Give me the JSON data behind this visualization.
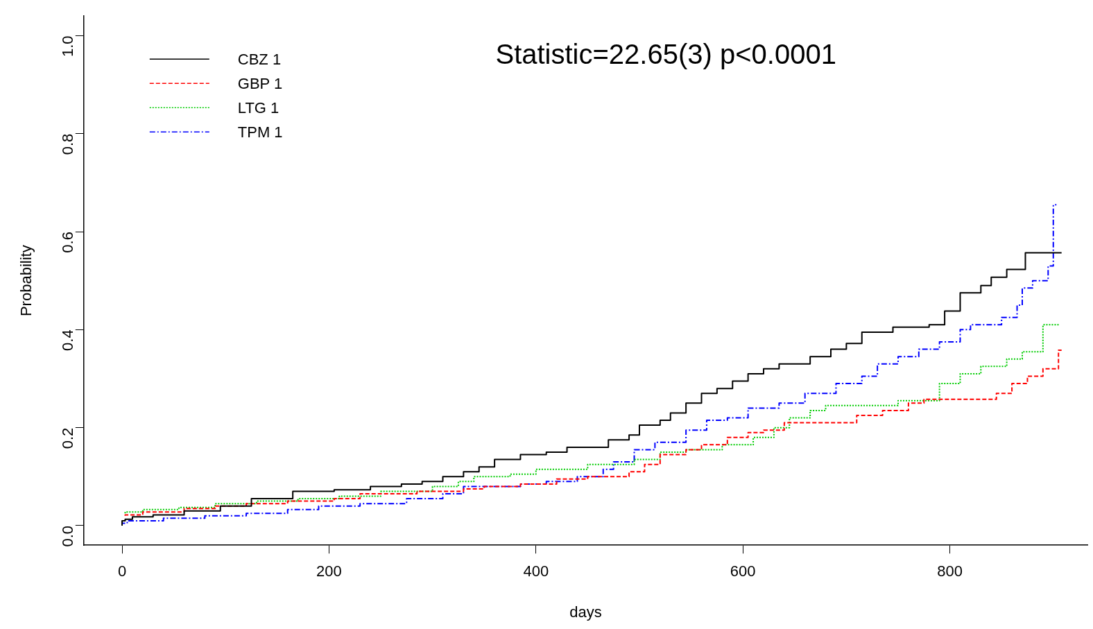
{
  "chart_data": {
    "type": "step",
    "xlabel": "days",
    "ylabel": "Probability",
    "annotations": [
      "Statistic=22.65(3) p<0.0001"
    ],
    "xlim": [
      -37,
      933
    ],
    "xticks": [
      0,
      200,
      400,
      600,
      800
    ],
    "ylim": [
      -0.04,
      1.04
    ],
    "yticks": [
      {
        "value": 0,
        "label": "0.0"
      },
      {
        "value": 0.2,
        "label": "0.2"
      },
      {
        "value": 0.4,
        "label": "0.4"
      },
      {
        "value": 0.6,
        "label": "0.6"
      },
      {
        "value": 0.8,
        "label": "0.8"
      },
      {
        "value": 1,
        "label": "1.0"
      }
    ],
    "grid": false,
    "legend": "top left",
    "marker": "none",
    "series": [
      {
        "name": "CBZ 1",
        "color": "#000000",
        "line_style": "solid",
        "x": [
          0,
          3,
          10,
          30,
          60,
          95,
          125,
          165,
          205,
          240,
          270,
          290,
          310,
          330,
          345,
          360,
          385,
          410,
          430,
          470,
          490,
          500,
          520,
          530,
          545,
          560,
          575,
          590,
          605,
          620,
          635,
          665,
          685,
          700,
          715,
          745,
          780,
          795,
          810,
          830,
          840,
          855,
          873,
          898,
          908
        ],
        "values": [
          0,
          0.01,
          0.013,
          0.018,
          0.022,
          0.03,
          0.04,
          0.055,
          0.07,
          0.073,
          0.08,
          0.085,
          0.09,
          0.1,
          0.11,
          0.12,
          0.135,
          0.145,
          0.15,
          0.16,
          0.175,
          0.185,
          0.205,
          0.215,
          0.23,
          0.25,
          0.27,
          0.28,
          0.295,
          0.31,
          0.32,
          0.33,
          0.345,
          0.36,
          0.372,
          0.395,
          0.405,
          0.41,
          0.438,
          0.475,
          0.49,
          0.507,
          0.523,
          0.557,
          0.557
        ]
      },
      {
        "name": "GBP 1",
        "color": "#ff0000",
        "line_style": "dashed",
        "x": [
          3,
          20,
          60,
          90,
          120,
          160,
          205,
          230,
          285,
          330,
          350,
          385,
          420,
          450,
          490,
          505,
          520,
          545,
          560,
          585,
          605,
          620,
          640,
          710,
          735,
          760,
          775,
          845,
          860,
          875,
          890,
          905,
          908
        ],
        "values": [
          0.02,
          0.022,
          0.028,
          0.035,
          0.04,
          0.045,
          0.05,
          0.055,
          0.065,
          0.07,
          0.075,
          0.08,
          0.085,
          0.095,
          0.1,
          0.11,
          0.125,
          0.145,
          0.155,
          0.165,
          0.18,
          0.19,
          0.195,
          0.21,
          0.225,
          0.235,
          0.25,
          0.258,
          0.27,
          0.29,
          0.305,
          0.32,
          0.358
        ]
      },
      {
        "name": "LTG 1",
        "color": "#00cc00",
        "line_style": "dotted",
        "x": [
          3,
          20,
          55,
          90,
          130,
          170,
          210,
          250,
          300,
          325,
          340,
          375,
          400,
          450,
          495,
          520,
          545,
          580,
          610,
          630,
          645,
          665,
          680,
          750,
          790,
          810,
          830,
          855,
          870,
          890,
          906
        ],
        "values": [
          0.025,
          0.028,
          0.033,
          0.037,
          0.045,
          0.05,
          0.055,
          0.06,
          0.07,
          0.08,
          0.09,
          0.1,
          0.105,
          0.115,
          0.125,
          0.135,
          0.15,
          0.155,
          0.165,
          0.18,
          0.2,
          0.22,
          0.235,
          0.245,
          0.255,
          0.29,
          0.31,
          0.325,
          0.34,
          0.355,
          0.41
        ]
      },
      {
        "name": "TPM 1",
        "color": "#0000ff",
        "line_style": "dashdot",
        "x": [
          0,
          5,
          40,
          80,
          120,
          160,
          190,
          230,
          275,
          310,
          330,
          385,
          410,
          440,
          465,
          475,
          495,
          515,
          545,
          565,
          585,
          605,
          635,
          660,
          690,
          715,
          730,
          750,
          770,
          790,
          810,
          820,
          850,
          865,
          870,
          880,
          895,
          900,
          903
        ],
        "values": [
          0,
          0.005,
          0.01,
          0.015,
          0.02,
          0.025,
          0.033,
          0.04,
          0.045,
          0.055,
          0.065,
          0.08,
          0.085,
          0.09,
          0.1,
          0.115,
          0.13,
          0.155,
          0.17,
          0.195,
          0.215,
          0.22,
          0.24,
          0.25,
          0.27,
          0.29,
          0.305,
          0.33,
          0.345,
          0.36,
          0.375,
          0.4,
          0.41,
          0.425,
          0.45,
          0.485,
          0.5,
          0.53,
          0.655
        ]
      }
    ]
  }
}
